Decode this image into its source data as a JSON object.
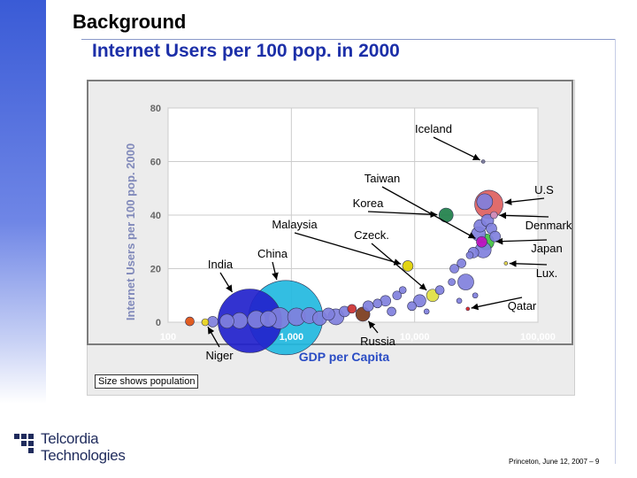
{
  "header": {
    "title": "Background",
    "subtitle": "Internet Users per 100 pop. in 2000"
  },
  "caption": "Size shows population",
  "logo": {
    "line1": "Telcordia",
    "line2": "Technologies",
    "icon": "telcordia-logo"
  },
  "footer": "Princeton, June 12, 2007 – 9",
  "colors": {
    "accent": "#1c2fa8",
    "sidebar": "#3a5bd6",
    "axis_label": "#2a4cc4",
    "ylabel": "#8089ba"
  },
  "chart_data": {
    "type": "scatter",
    "xlabel": "GDP per Capita",
    "ylabel": "Internet Users per 100 pop. 2000",
    "x_scale": "log",
    "xlim": [
      100,
      100000
    ],
    "ylim": [
      0,
      80
    ],
    "x_ticks": [
      {
        "value": 100,
        "label": "100"
      },
      {
        "value": 1000,
        "label": "1,000"
      },
      {
        "value": 10000,
        "label": "10,000"
      },
      {
        "value": 100000,
        "label": "100,000"
      }
    ],
    "y_ticks": [
      {
        "value": 0,
        "label": "0"
      },
      {
        "value": 20,
        "label": "20"
      },
      {
        "value": 40,
        "label": "40"
      },
      {
        "value": 60,
        "label": "60"
      },
      {
        "value": 80,
        "label": "80"
      }
    ],
    "grid": true,
    "points": [
      {
        "x": 460,
        "y": 0.5,
        "r": 36,
        "color": "#2222cc",
        "label": "India"
      },
      {
        "x": 900,
        "y": 1.7,
        "r": 42,
        "color": "#22b8e0",
        "label": "China"
      },
      {
        "x": 200,
        "y": 0.0,
        "r": 4,
        "color": "#e8d31a",
        "label": "Niger"
      },
      {
        "x": 3800,
        "y": 3.0,
        "r": 8,
        "color": "#7a3a1a",
        "label": "Russia"
      },
      {
        "x": 8800,
        "y": 21.0,
        "r": 6,
        "color": "#e0d000",
        "label": "Malaysia"
      },
      {
        "x": 14000,
        "y": 10.0,
        "r": 7,
        "color": "#e0e040",
        "label": "Czeck."
      },
      {
        "x": 18000,
        "y": 40.0,
        "r": 8,
        "color": "#20804a",
        "label": "Korea"
      },
      {
        "x": 35000,
        "y": 30.0,
        "r": 6,
        "color": "#c010c0",
        "label": "Taiwan"
      },
      {
        "x": 36000,
        "y": 60.0,
        "r": 2,
        "color": "#777799",
        "label": "Iceland"
      },
      {
        "x": 40000,
        "y": 44.0,
        "r": 16,
        "color": "#dd6060",
        "label": "U.S"
      },
      {
        "x": 44000,
        "y": 40.0,
        "r": 4,
        "color": "#d090c0",
        "label": "Denmark"
      },
      {
        "x": 38000,
        "y": 30.0,
        "r": 9,
        "color": "#40c040",
        "label": "Japan"
      },
      {
        "x": 55000,
        "y": 22.0,
        "r": 2,
        "color": "#e0d040",
        "label": "Lux."
      },
      {
        "x": 27000,
        "y": 5.0,
        "r": 2,
        "color": "#dd2020",
        "label": "Qatar"
      },
      {
        "x": 150,
        "y": 0.3,
        "r": 5,
        "color": "#e05010",
        "label": ""
      },
      {
        "x": 230,
        "y": 0.2,
        "r": 6,
        "color": "#8080dd",
        "label": ""
      },
      {
        "x": 300,
        "y": 0.4,
        "r": 8,
        "color": "#8080dd",
        "label": ""
      },
      {
        "x": 380,
        "y": 0.6,
        "r": 9,
        "color": "#8080dd",
        "label": ""
      },
      {
        "x": 520,
        "y": 1.0,
        "r": 10,
        "color": "#8080dd",
        "label": ""
      },
      {
        "x": 650,
        "y": 1.2,
        "r": 9,
        "color": "#8080dd",
        "label": ""
      },
      {
        "x": 800,
        "y": 1.5,
        "r": 12,
        "color": "#8080dd",
        "label": ""
      },
      {
        "x": 1100,
        "y": 2.0,
        "r": 10,
        "color": "#8080dd",
        "label": ""
      },
      {
        "x": 1400,
        "y": 2.5,
        "r": 9,
        "color": "#8080dd",
        "label": ""
      },
      {
        "x": 1700,
        "y": 1.5,
        "r": 8,
        "color": "#8080dd",
        "label": ""
      },
      {
        "x": 2000,
        "y": 3.0,
        "r": 7,
        "color": "#8080dd",
        "label": ""
      },
      {
        "x": 2300,
        "y": 2.0,
        "r": 9,
        "color": "#8080dd",
        "label": ""
      },
      {
        "x": 2700,
        "y": 4.0,
        "r": 6,
        "color": "#8080dd",
        "label": ""
      },
      {
        "x": 3100,
        "y": 5.0,
        "r": 5,
        "color": "#cc3030",
        "label": ""
      },
      {
        "x": 4200,
        "y": 6.0,
        "r": 6,
        "color": "#8080dd",
        "label": ""
      },
      {
        "x": 5000,
        "y": 7.0,
        "r": 5,
        "color": "#8080dd",
        "label": ""
      },
      {
        "x": 5800,
        "y": 8.0,
        "r": 6,
        "color": "#8080dd",
        "label": ""
      },
      {
        "x": 6500,
        "y": 4.0,
        "r": 5,
        "color": "#8080dd",
        "label": ""
      },
      {
        "x": 7200,
        "y": 10.0,
        "r": 5,
        "color": "#8080dd",
        "label": ""
      },
      {
        "x": 8000,
        "y": 12.0,
        "r": 4,
        "color": "#8080dd",
        "label": ""
      },
      {
        "x": 9500,
        "y": 6.0,
        "r": 5,
        "color": "#8080dd",
        "label": ""
      },
      {
        "x": 11000,
        "y": 8.0,
        "r": 7,
        "color": "#8080dd",
        "label": ""
      },
      {
        "x": 12500,
        "y": 4.0,
        "r": 3,
        "color": "#8080dd",
        "label": ""
      },
      {
        "x": 16000,
        "y": 12.0,
        "r": 5,
        "color": "#8080dd",
        "label": ""
      },
      {
        "x": 20000,
        "y": 15.0,
        "r": 4,
        "color": "#8080dd",
        "label": ""
      },
      {
        "x": 21000,
        "y": 20.0,
        "r": 5,
        "color": "#8080dd",
        "label": ""
      },
      {
        "x": 23000,
        "y": 8.0,
        "r": 3,
        "color": "#8080dd",
        "label": ""
      },
      {
        "x": 24000,
        "y": 22.0,
        "r": 5,
        "color": "#8080dd",
        "label": ""
      },
      {
        "x": 26000,
        "y": 15.0,
        "r": 9,
        "color": "#8080dd",
        "label": ""
      },
      {
        "x": 28000,
        "y": 25.0,
        "r": 4,
        "color": "#8080dd",
        "label": ""
      },
      {
        "x": 30000,
        "y": 26.0,
        "r": 6,
        "color": "#8080dd",
        "label": ""
      },
      {
        "x": 31000,
        "y": 10.0,
        "r": 3,
        "color": "#8080dd",
        "label": ""
      },
      {
        "x": 33000,
        "y": 33.0,
        "r": 8,
        "color": "#8080dd",
        "label": ""
      },
      {
        "x": 34000,
        "y": 36.0,
        "r": 7,
        "color": "#8080dd",
        "label": ""
      },
      {
        "x": 36000,
        "y": 27.0,
        "r": 9,
        "color": "#8080dd",
        "label": ""
      },
      {
        "x": 37000,
        "y": 45.0,
        "r": 9,
        "color": "#8080dd",
        "label": ""
      },
      {
        "x": 39000,
        "y": 38.0,
        "r": 7,
        "color": "#8080dd",
        "label": ""
      },
      {
        "x": 42000,
        "y": 35.0,
        "r": 6,
        "color": "#8080dd",
        "label": ""
      },
      {
        "x": 45000,
        "y": 32.0,
        "r": 6,
        "color": "#8080dd",
        "label": ""
      }
    ],
    "annotations": [
      {
        "text": "Iceland",
        "target": "Iceland"
      },
      {
        "text": "Taiwan",
        "target": "Taiwan"
      },
      {
        "text": "U.S",
        "target": "U.S"
      },
      {
        "text": "Korea",
        "target": "Korea"
      },
      {
        "text": "Malaysia",
        "target": "Malaysia"
      },
      {
        "text": "Czeck.",
        "target": "Czeck."
      },
      {
        "text": "Denmark",
        "target": "Denmark"
      },
      {
        "text": "Japan",
        "target": "Japan"
      },
      {
        "text": "China",
        "target": "China"
      },
      {
        "text": "India",
        "target": "India"
      },
      {
        "text": "Lux.",
        "target": "Lux."
      },
      {
        "text": "Qatar",
        "target": "Qatar"
      },
      {
        "text": "Russia",
        "target": "Russia"
      },
      {
        "text": "Niger",
        "target": "Niger"
      }
    ]
  }
}
